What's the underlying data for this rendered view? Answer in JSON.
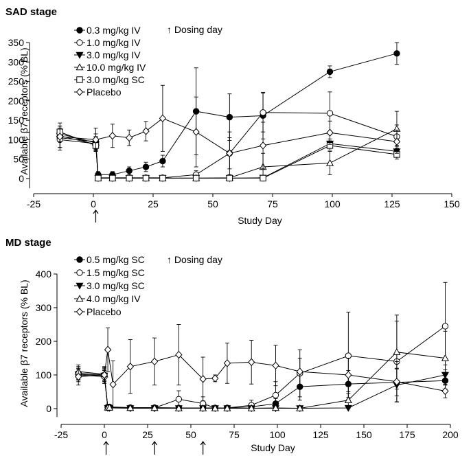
{
  "panels": [
    {
      "stage_label": "SAD stage",
      "dosing_legend": "↑ Dosing day",
      "chart_data": {
        "type": "line",
        "title": "",
        "xlabel": "Study Day",
        "ylabel": "Available β7 receptors (% BL)",
        "xlim": [
          -25,
          150
        ],
        "ylim": [
          -25,
          350
        ],
        "xticks": [
          -25,
          0,
          25,
          50,
          75,
          100,
          125,
          150
        ],
        "yticks": [
          0,
          50,
          100,
          150,
          200,
          250,
          300,
          350
        ],
        "grid": false,
        "legend_position": "top-left",
        "dosing_days": [
          1
        ],
        "series": [
          {
            "name": "0.3 mg/kg IV",
            "marker": "circle-filled",
            "x": [
              -14,
              1,
              2,
              8,
              15,
              22,
              29,
              43,
              57,
              71,
              99,
              127
            ],
            "y": [
              105,
              95,
              10,
              10,
              20,
              30,
              45,
              173,
              158,
              162,
              275,
              322
            ],
            "err": [
              25,
              20,
              8,
              8,
              10,
              12,
              15,
              112,
              60,
              60,
              15,
              28
            ]
          },
          {
            "name": "1.0 mg/kg IV",
            "marker": "circle-open",
            "x": [
              -14,
              1,
              2,
              8,
              15,
              22,
              29,
              43,
              57,
              71,
              99,
              127
            ],
            "y": [
              100,
              90,
              2,
              2,
              2,
              2,
              2,
              10,
              65,
              170,
              168,
              108
            ],
            "err": [
              20,
              18,
              2,
              2,
              2,
              2,
              2,
              10,
              40,
              50,
              55,
              30
            ]
          },
          {
            "name": "3.0 mg/kg IV",
            "marker": "triangle-down-filled",
            "x": [
              -14,
              1,
              2,
              8,
              15,
              22,
              29,
              43,
              57,
              71,
              99,
              127
            ],
            "y": [
              110,
              88,
              1,
              1,
              1,
              1,
              1,
              1,
              1,
              2,
              90,
              70
            ],
            "err": [
              15,
              15,
              1,
              1,
              1,
              1,
              1,
              1,
              1,
              2,
              12,
              15
            ]
          },
          {
            "name": "10.0 mg/kg IV",
            "marker": "triangle-up-open",
            "x": [
              -14,
              1,
              2,
              8,
              15,
              22,
              29,
              43,
              57,
              71,
              99,
              127
            ],
            "y": [
              115,
              92,
              1,
              1,
              1,
              1,
              1,
              1,
              2,
              30,
              40,
              128
            ],
            "err": [
              20,
              15,
              1,
              1,
              1,
              1,
              1,
              1,
              2,
              35,
              30,
              45
            ]
          },
          {
            "name": "3.0 mg/kg SC",
            "marker": "square-open",
            "x": [
              -14,
              1,
              2,
              8,
              15,
              22,
              29,
              43,
              57,
              71,
              99,
              127
            ],
            "y": [
              120,
              85,
              1,
              1,
              1,
              1,
              1,
              1,
              1,
              1,
              85,
              62
            ],
            "err": [
              15,
              15,
              1,
              1,
              1,
              1,
              1,
              1,
              1,
              1,
              12,
              12
            ]
          },
          {
            "name": "Placebo",
            "marker": "diamond-open",
            "x": [
              -14,
              1,
              8,
              15,
              22,
              29,
              43,
              57,
              71,
              99,
              127
            ],
            "y": [
              108,
              100,
              110,
              105,
              122,
              155,
              120,
              65,
              85,
              118,
              95
            ],
            "err": [
              35,
              30,
              30,
              20,
              25,
              85,
              90,
              55,
              60,
              30,
              30
            ]
          }
        ]
      }
    },
    {
      "stage_label": "MD stage",
      "dosing_legend": "↑ Dosing day",
      "chart_data": {
        "type": "line",
        "title": "",
        "xlabel": "Study Day",
        "ylabel": "Available β7 receptors (% BL)",
        "xlim": [
          -25,
          200
        ],
        "ylim": [
          -25,
          400
        ],
        "xticks": [
          -25,
          0,
          25,
          50,
          75,
          100,
          125,
          150,
          175,
          200
        ],
        "yticks": [
          0,
          100,
          200,
          300,
          400
        ],
        "grid": false,
        "legend_position": "top-left",
        "dosing_days": [
          1,
          29,
          57
        ],
        "series": [
          {
            "name": "0.5 mg/kg SC",
            "marker": "circle-filled",
            "x": [
              -15,
              0,
              2,
              3,
              15,
              29,
              43,
              57,
              64,
              71,
              85,
              99,
              113,
              141,
              169,
              197
            ],
            "y": [
              105,
              100,
              5,
              5,
              3,
              3,
              2,
              2,
              2,
              2,
              5,
              15,
              65,
              73,
              78,
              83
            ],
            "err": [
              20,
              20,
              5,
              5,
              3,
              3,
              2,
              2,
              2,
              2,
              5,
              15,
              40,
              40,
              40,
              25
            ]
          },
          {
            "name": "1.5 mg/kg SC",
            "marker": "circle-open",
            "x": [
              -15,
              0,
              2,
              3,
              15,
              29,
              43,
              57,
              64,
              71,
              85,
              99,
              113,
              141,
              169,
              197
            ],
            "y": [
              100,
              95,
              3,
              3,
              2,
              2,
              28,
              15,
              2,
              2,
              10,
              40,
              105,
              157,
              140,
              245
            ],
            "err": [
              20,
              20,
              3,
              3,
              2,
              2,
              25,
              20,
              2,
              2,
              15,
              40,
              70,
              130,
              120,
              130
            ]
          },
          {
            "name": "3.0 mg/kg SC",
            "marker": "triangle-down-filled",
            "x": [
              -15,
              0,
              2,
              3,
              15,
              29,
              43,
              57,
              64,
              71,
              85,
              99,
              113,
              141,
              169,
              197
            ],
            "y": [
              102,
              98,
              2,
              2,
              1,
              1,
              1,
              1,
              1,
              1,
              1,
              1,
              1,
              2,
              70,
              100
            ],
            "err": [
              15,
              15,
              2,
              2,
              1,
              1,
              1,
              1,
              1,
              1,
              1,
              1,
              1,
              2,
              50,
              30
            ]
          },
          {
            "name": "4.0 mg/kg IV",
            "marker": "triangle-up-open",
            "x": [
              -15,
              0,
              2,
              3,
              15,
              29,
              43,
              57,
              64,
              71,
              85,
              99,
              113,
              141,
              169,
              197
            ],
            "y": [
              110,
              102,
              3,
              3,
              2,
              2,
              1,
              1,
              1,
              1,
              1,
              2,
              1,
              25,
              168,
              150
            ],
            "err": [
              20,
              20,
              3,
              3,
              2,
              2,
              1,
              1,
              1,
              1,
              1,
              2,
              1,
              20,
              110,
              80
            ]
          },
          {
            "name": "Placebo",
            "marker": "diamond-open",
            "x": [
              -15,
              0,
              2,
              5,
              15,
              29,
              43,
              57,
              64,
              71,
              85,
              99,
              113,
              141,
              169,
              197
            ],
            "y": [
              95,
              100,
              175,
              72,
              125,
              140,
              160,
              88,
              90,
              135,
              138,
              128,
              110,
              100,
              80,
              52
            ],
            "err": [
              25,
              25,
              65,
              70,
              80,
              70,
              90,
              65,
              10,
              60,
              65,
              60,
              40,
              50,
              60,
              20
            ]
          }
        ]
      }
    }
  ]
}
